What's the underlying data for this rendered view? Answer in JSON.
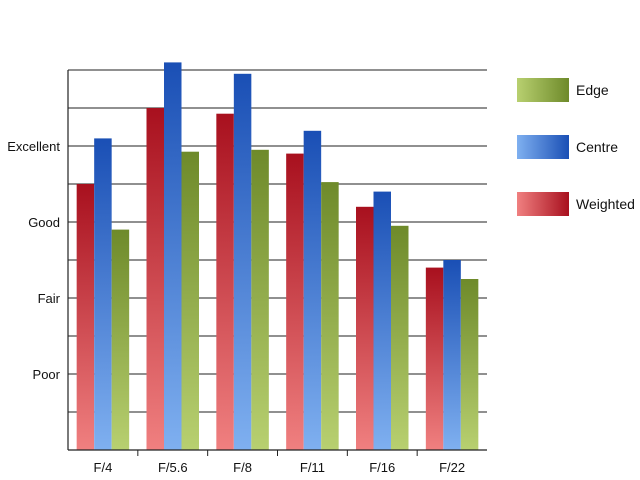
{
  "chart_data": {
    "type": "bar",
    "categories": [
      "F/4",
      "F/5.6",
      "F/8",
      "F/11",
      "F/16",
      "F/22"
    ],
    "series": [
      {
        "name": "Weighted",
        "values": [
          7.0,
          9.0,
          8.85,
          7.8,
          6.4,
          4.8
        ],
        "color_light": "#f08080",
        "color_dark": "#a8101e"
      },
      {
        "name": "Centre",
        "values": [
          8.2,
          10.2,
          9.9,
          8.4,
          6.8,
          5.0
        ],
        "color_light": "#7fb0f0",
        "color_dark": "#1a4fb5"
      },
      {
        "name": "Edge",
        "values": [
          5.8,
          7.85,
          7.9,
          7.05,
          5.9,
          4.5
        ],
        "color_light": "#b8d070",
        "color_dark": "#6e8a2a"
      }
    ],
    "ylim": [
      0,
      10
    ],
    "yticks": [
      {
        "value": 2,
        "label": "Poor"
      },
      {
        "value": 4,
        "label": "Fair"
      },
      {
        "value": 6,
        "label": "Good"
      },
      {
        "value": 8,
        "label": "Excellent"
      }
    ],
    "gridlines": [
      1,
      2,
      3,
      4,
      5,
      6,
      7,
      8,
      9,
      10
    ],
    "grid": true,
    "legend_placement": "right",
    "legend_order": [
      "Edge",
      "Centre",
      "Weighted"
    ]
  }
}
